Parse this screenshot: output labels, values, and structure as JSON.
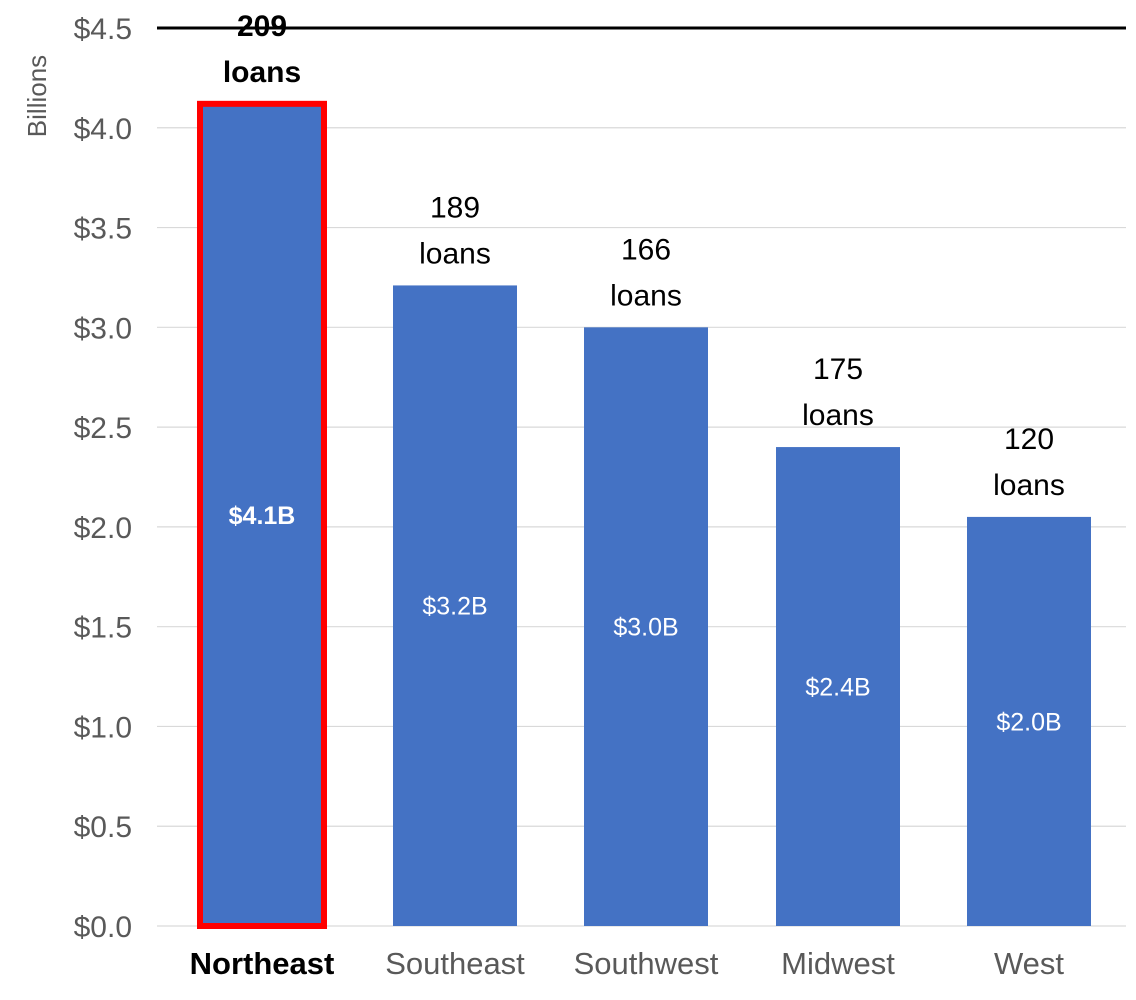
{
  "chart_data": {
    "type": "bar",
    "title": "",
    "xlabel": "",
    "ylabel": "Billions",
    "ylim": [
      0,
      4.5
    ],
    "y_ticks": [
      {
        "value": 0.0,
        "label": "$0.0"
      },
      {
        "value": 0.5,
        "label": "$0.5"
      },
      {
        "value": 1.0,
        "label": "$1.0"
      },
      {
        "value": 1.5,
        "label": "$1.5"
      },
      {
        "value": 2.0,
        "label": "$2.0"
      },
      {
        "value": 2.5,
        "label": "$2.5"
      },
      {
        "value": 3.0,
        "label": "$3.0"
      },
      {
        "value": 3.5,
        "label": "$3.5"
      },
      {
        "value": 4.0,
        "label": "$4.0"
      },
      {
        "value": 4.5,
        "label": "$4.5"
      }
    ],
    "grid": true,
    "legend": "none",
    "categories": [
      "Northeast",
      "Southeast",
      "Southwest",
      "Midwest",
      "West"
    ],
    "values": [
      4.12,
      3.21,
      3.0,
      2.4,
      2.05
    ],
    "value_labels": [
      "$4.1B",
      "$3.2B",
      "$3.0B",
      "$2.4B",
      "$2.0B"
    ],
    "count_labels": [
      [
        "209",
        "loans"
      ],
      [
        "189",
        "loans"
      ],
      [
        "166",
        "loans"
      ],
      [
        "175",
        "loans"
      ],
      [
        "120",
        "loans"
      ]
    ],
    "highlighted_index": 0,
    "colors": {
      "bar": "#4472C4",
      "highlight_outline": "#FF0000",
      "grid": "#D9D9D9",
      "top_line": "#000000"
    }
  }
}
